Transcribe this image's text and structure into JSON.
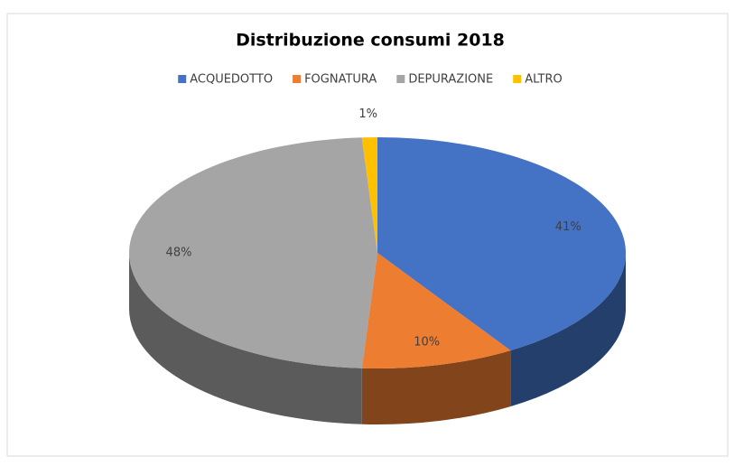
{
  "chart_data": {
    "type": "pie",
    "title": "Distribuzione consumi 2018",
    "categories": [
      "ACQUEDOTTO",
      "FOGNATURA",
      "DEPURAZIONE",
      "ALTRO"
    ],
    "values": [
      41,
      10,
      48,
      1
    ],
    "value_labels": [
      "41%",
      "10%",
      "48%",
      "1%"
    ],
    "colors": [
      "#4472c4",
      "#ed7d31",
      "#a5a5a5",
      "#ffc000"
    ],
    "legend": "top"
  }
}
